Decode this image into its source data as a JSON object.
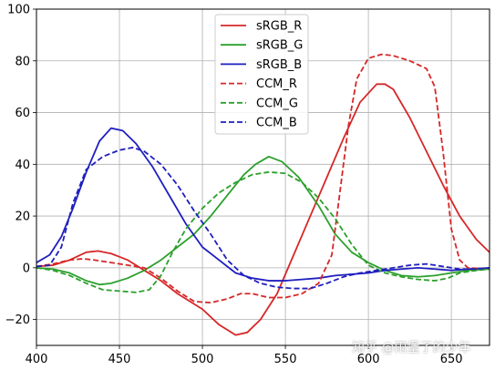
{
  "chart_data": {
    "type": "line",
    "title": "",
    "xlabel": "",
    "ylabel": "",
    "xlim": [
      400,
      673
    ],
    "ylim": [
      -30,
      100
    ],
    "xticks": [
      400,
      450,
      500,
      550,
      600,
      650
    ],
    "yticks": [
      -20,
      0,
      20,
      40,
      60,
      80,
      100
    ],
    "grid": true,
    "legend_position": "upper-center",
    "series": [
      {
        "name": "sRGB_R",
        "color": "#d62728",
        "style": "solid",
        "points": [
          [
            400,
            0.5
          ],
          [
            410,
            1
          ],
          [
            420,
            3
          ],
          [
            430,
            6
          ],
          [
            437,
            6.5
          ],
          [
            445,
            5.5
          ],
          [
            455,
            3
          ],
          [
            465,
            -1
          ],
          [
            475,
            -5
          ],
          [
            485,
            -10
          ],
          [
            500,
            -16
          ],
          [
            510,
            -22
          ],
          [
            520,
            -26
          ],
          [
            527,
            -25
          ],
          [
            535,
            -20
          ],
          [
            545,
            -10
          ],
          [
            555,
            5
          ],
          [
            565,
            20
          ],
          [
            575,
            35
          ],
          [
            585,
            50
          ],
          [
            595,
            64
          ],
          [
            605,
            71
          ],
          [
            610,
            71
          ],
          [
            615,
            69
          ],
          [
            625,
            58
          ],
          [
            635,
            45
          ],
          [
            645,
            32
          ],
          [
            655,
            20
          ],
          [
            665,
            11
          ],
          [
            673,
            6
          ]
        ]
      },
      {
        "name": "sRGB_G",
        "color": "#2ca02c",
        "style": "solid",
        "points": [
          [
            400,
            0
          ],
          [
            410,
            -0.5
          ],
          [
            420,
            -2
          ],
          [
            430,
            -5
          ],
          [
            438,
            -6.5
          ],
          [
            445,
            -6
          ],
          [
            455,
            -4
          ],
          [
            465,
            -1
          ],
          [
            475,
            3
          ],
          [
            485,
            8
          ],
          [
            495,
            13
          ],
          [
            505,
            20
          ],
          [
            515,
            28
          ],
          [
            525,
            36
          ],
          [
            532,
            40
          ],
          [
            540,
            43
          ],
          [
            548,
            41
          ],
          [
            558,
            35
          ],
          [
            570,
            24
          ],
          [
            580,
            13
          ],
          [
            590,
            6
          ],
          [
            600,
            2
          ],
          [
            610,
            -1
          ],
          [
            620,
            -3
          ],
          [
            630,
            -3.5
          ],
          [
            640,
            -3
          ],
          [
            650,
            -2
          ],
          [
            660,
            -1
          ],
          [
            673,
            -0.5
          ]
        ]
      },
      {
        "name": "sRGB_B",
        "color": "#1f1fbf",
        "style": "solid",
        "points": [
          [
            400,
            2
          ],
          [
            408,
            5
          ],
          [
            415,
            12
          ],
          [
            422,
            23
          ],
          [
            430,
            37
          ],
          [
            438,
            49
          ],
          [
            445,
            54
          ],
          [
            452,
            53
          ],
          [
            460,
            48
          ],
          [
            470,
            39
          ],
          [
            480,
            28
          ],
          [
            490,
            17
          ],
          [
            500,
            8
          ],
          [
            510,
            3
          ],
          [
            520,
            -2
          ],
          [
            530,
            -4
          ],
          [
            540,
            -5
          ],
          [
            550,
            -5
          ],
          [
            560,
            -4.5
          ],
          [
            570,
            -4
          ],
          [
            580,
            -3
          ],
          [
            590,
            -2.5
          ],
          [
            600,
            -2
          ],
          [
            610,
            -1
          ],
          [
            620,
            -0.5
          ],
          [
            630,
            0
          ],
          [
            640,
            -0.5
          ],
          [
            650,
            -1
          ],
          [
            660,
            -0.5
          ],
          [
            673,
            0
          ]
        ]
      },
      {
        "name": "CCM_R",
        "color": "#d62728",
        "style": "dashed",
        "points": [
          [
            400,
            0.5
          ],
          [
            410,
            1.5
          ],
          [
            420,
            3
          ],
          [
            428,
            3.5
          ],
          [
            435,
            3
          ],
          [
            445,
            2
          ],
          [
            455,
            1
          ],
          [
            465,
            0
          ],
          [
            475,
            -4
          ],
          [
            485,
            -9
          ],
          [
            495,
            -13
          ],
          [
            505,
            -13.5
          ],
          [
            515,
            -12
          ],
          [
            523,
            -10
          ],
          [
            530,
            -10
          ],
          [
            540,
            -11.5
          ],
          [
            550,
            -11.5
          ],
          [
            560,
            -10
          ],
          [
            570,
            -6
          ],
          [
            578,
            5
          ],
          [
            583,
            30
          ],
          [
            588,
            55
          ],
          [
            593,
            73
          ],
          [
            600,
            81
          ],
          [
            608,
            82.5
          ],
          [
            615,
            82
          ],
          [
            625,
            80
          ],
          [
            635,
            77
          ],
          [
            640,
            70
          ],
          [
            645,
            45
          ],
          [
            650,
            15
          ],
          [
            655,
            3
          ],
          [
            660,
            0
          ],
          [
            673,
            -0.5
          ]
        ]
      },
      {
        "name": "CCM_G",
        "color": "#2ca02c",
        "style": "dashed",
        "points": [
          [
            400,
            0
          ],
          [
            410,
            -1
          ],
          [
            420,
            -3
          ],
          [
            430,
            -6
          ],
          [
            440,
            -8.5
          ],
          [
            450,
            -9
          ],
          [
            460,
            -9.5
          ],
          [
            468,
            -8.5
          ],
          [
            475,
            -3
          ],
          [
            482,
            6
          ],
          [
            490,
            15
          ],
          [
            500,
            23
          ],
          [
            510,
            29
          ],
          [
            520,
            33
          ],
          [
            530,
            36
          ],
          [
            540,
            37
          ],
          [
            550,
            36.5
          ],
          [
            560,
            33
          ],
          [
            570,
            27
          ],
          [
            580,
            19
          ],
          [
            590,
            9
          ],
          [
            600,
            1
          ],
          [
            610,
            -2
          ],
          [
            620,
            -3.5
          ],
          [
            630,
            -4.5
          ],
          [
            640,
            -5
          ],
          [
            648,
            -4
          ],
          [
            655,
            -2
          ],
          [
            665,
            -1
          ],
          [
            673,
            -0.5
          ]
        ]
      },
      {
        "name": "CCM_B",
        "color": "#1f1fbf",
        "style": "dashed",
        "points": [
          [
            400,
            0.5
          ],
          [
            408,
            1
          ],
          [
            415,
            8
          ],
          [
            422,
            25
          ],
          [
            430,
            38
          ],
          [
            440,
            43
          ],
          [
            450,
            45.5
          ],
          [
            458,
            46.5
          ],
          [
            465,
            45
          ],
          [
            475,
            40
          ],
          [
            485,
            32
          ],
          [
            495,
            22
          ],
          [
            505,
            13
          ],
          [
            515,
            3
          ],
          [
            525,
            -3
          ],
          [
            535,
            -6
          ],
          [
            545,
            -7.5
          ],
          [
            555,
            -8
          ],
          [
            565,
            -8
          ],
          [
            575,
            -6
          ],
          [
            585,
            -3.5
          ],
          [
            595,
            -2
          ],
          [
            605,
            -1
          ],
          [
            615,
            0
          ],
          [
            625,
            1
          ],
          [
            635,
            1.5
          ],
          [
            645,
            0.5
          ],
          [
            655,
            -0.5
          ],
          [
            665,
            -0.5
          ],
          [
            673,
            0
          ]
        ]
      }
    ]
  },
  "watermark": "知乎 @雨堡了的少年"
}
